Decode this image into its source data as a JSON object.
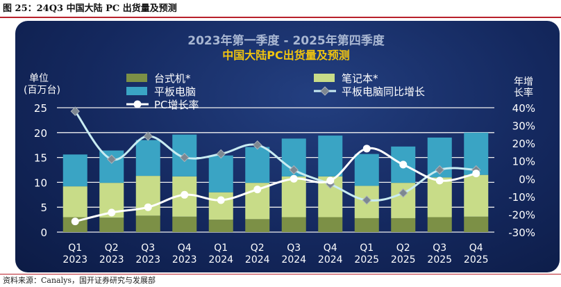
{
  "figure_caption": "图 25：24Q3 中国大陆 PC 出货量及预测",
  "source_note": "资料来源：Canalys，国开证券研究与发展部",
  "chart_data": {
    "type": "bar",
    "stacked": true,
    "title_line1": "2023年第一季度 - 2025年第四季度",
    "title_line2": "中国大陆PC出货量及预测",
    "categories": [
      {
        "quarter": "Q1",
        "year": "2023"
      },
      {
        "quarter": "Q2",
        "year": "2023"
      },
      {
        "quarter": "Q3",
        "year": "2023"
      },
      {
        "quarter": "Q4",
        "year": "2023"
      },
      {
        "quarter": "Q1",
        "year": "2024"
      },
      {
        "quarter": "Q2",
        "year": "2024"
      },
      {
        "quarter": "Q3",
        "year": "2024"
      },
      {
        "quarter": "Q4",
        "year": "2024"
      },
      {
        "quarter": "Q1",
        "year": "2025"
      },
      {
        "quarter": "Q2",
        "year": "2025"
      },
      {
        "quarter": "Q3",
        "year": "2025"
      },
      {
        "quarter": "Q4",
        "year": "2025"
      }
    ],
    "ylabel_left": [
      "单位",
      "(百万台)"
    ],
    "ylabel_right": [
      "年增",
      "长率"
    ],
    "ylim_left": [
      0,
      25
    ],
    "yticks_left": [
      "0",
      "5",
      "10",
      "15",
      "20",
      "25"
    ],
    "ylim_right": [
      -30,
      40
    ],
    "yticks_right": [
      "-30%",
      "-20%",
      "-10%",
      "0%",
      "10%",
      "20%",
      "30%",
      "40%"
    ],
    "stacked_series": [
      {
        "name": "台式机*",
        "color": "#7c9046",
        "values": [
          3.0,
          2.9,
          3.3,
          3.1,
          2.5,
          2.6,
          3.0,
          3.0,
          2.8,
          2.8,
          3.0,
          3.1
        ]
      },
      {
        "name": "笔记本*",
        "color": "#c8dc88",
        "values": [
          6.2,
          7.0,
          8.0,
          8.1,
          5.5,
          7.3,
          8.2,
          8.2,
          6.5,
          7.1,
          8.0,
          8.4
        ]
      },
      {
        "name": "平板电脑",
        "color": "#3aa4c4",
        "values": [
          6.4,
          6.5,
          7.2,
          8.4,
          7.4,
          7.2,
          7.6,
          8.2,
          6.4,
          7.3,
          8.0,
          8.5
        ]
      }
    ],
    "line_series": [
      {
        "name": "平板电脑同比增长",
        "color": "#c9ecf2",
        "marker": "diamond",
        "marker_color": "#7d8791",
        "values": [
          38,
          11,
          24,
          12,
          14,
          19,
          5,
          -3,
          -12,
          -8,
          5,
          5
        ]
      },
      {
        "name": "PC增长率",
        "color": "#ffffff",
        "marker": "circle",
        "marker_color": "#ffffff",
        "values": [
          -24,
          -19,
          -16,
          -9,
          -12,
          -6,
          0,
          -1,
          17,
          8,
          -1,
          3
        ]
      }
    ],
    "legend": [
      {
        "label": "台式机*",
        "kind": "rect",
        "color": "#7c9046"
      },
      {
        "label": "笔记本*",
        "kind": "rect",
        "color": "#c8dc88"
      },
      {
        "label": "平板电脑",
        "kind": "rect",
        "color": "#3aa4c4"
      },
      {
        "label": "平板电脑同比增长",
        "kind": "line-diamond",
        "color": "#c9ecf2"
      },
      {
        "label": "PC增长率",
        "kind": "line-circle",
        "color": "#ffffff"
      }
    ],
    "colors": {
      "title1": "#a9b7d2",
      "title2": "#f1c40f",
      "axis_text": "#ffffff",
      "gridline": "#f0f0f0"
    }
  }
}
